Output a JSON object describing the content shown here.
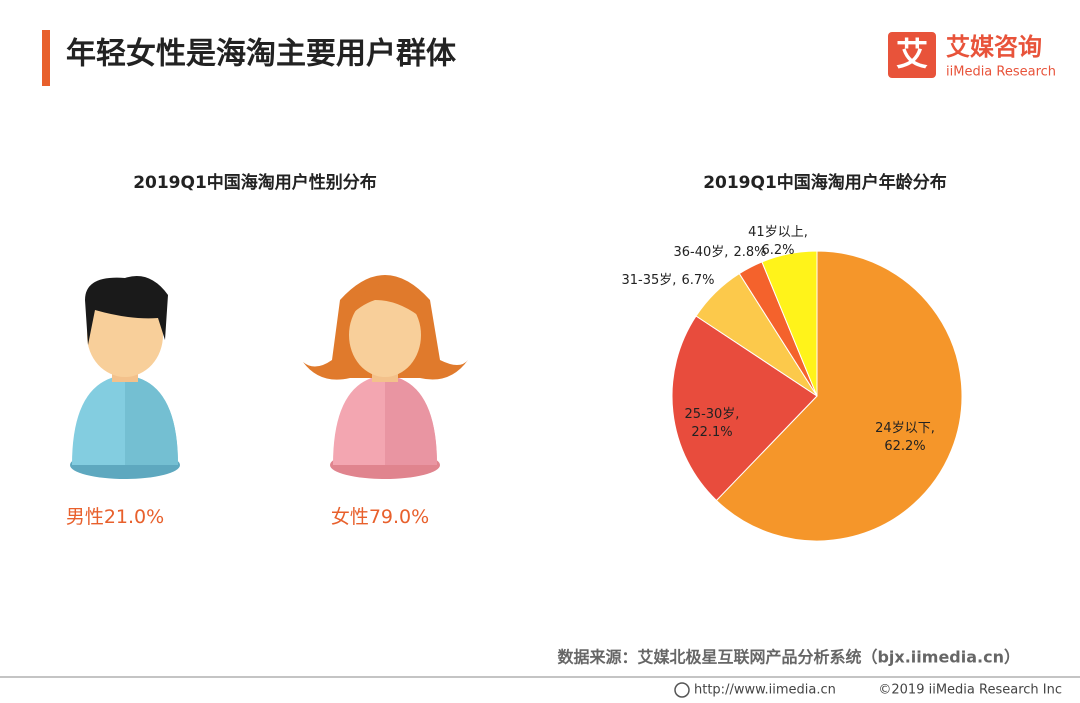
{
  "header": {
    "title": "年轻女性是海淘主要用户群体",
    "logo_mark": "艾",
    "logo_name": "艾媒咨询",
    "logo_en": "iiMedia Research"
  },
  "chart_data": [
    {
      "type": "pictogram",
      "title": "2019Q1中国海淘用户性别分布",
      "categories": [
        "男性",
        "女性"
      ],
      "values": [
        21.0,
        79.0
      ],
      "value_labels": [
        "21.0%",
        "79.0%"
      ],
      "color": "#e8602c"
    },
    {
      "type": "pie",
      "title": "2019Q1中国海淘用户年龄分布",
      "categories": [
        "24岁以下,",
        "25-30岁,",
        "31-35岁,",
        "36-40岁,",
        "41岁以上,"
      ],
      "values": [
        62.2,
        22.1,
        6.7,
        2.8,
        6.2
      ],
      "value_labels": [
        "62.2%",
        "22.1%",
        "6.7%",
        "2.8%",
        "6.2%"
      ],
      "colors": [
        "#f5962a",
        "#e84c3d",
        "#fcc94b",
        "#f4622c",
        "#fff31a"
      ]
    }
  ],
  "source": "数据来源：艾媒北极星互联网产品分析系统（bjx.iimedia.cn）",
  "footer": {
    "url": "http://www.iimedia.cn",
    "copyright": "©2019  iiMedia Research  Inc"
  }
}
